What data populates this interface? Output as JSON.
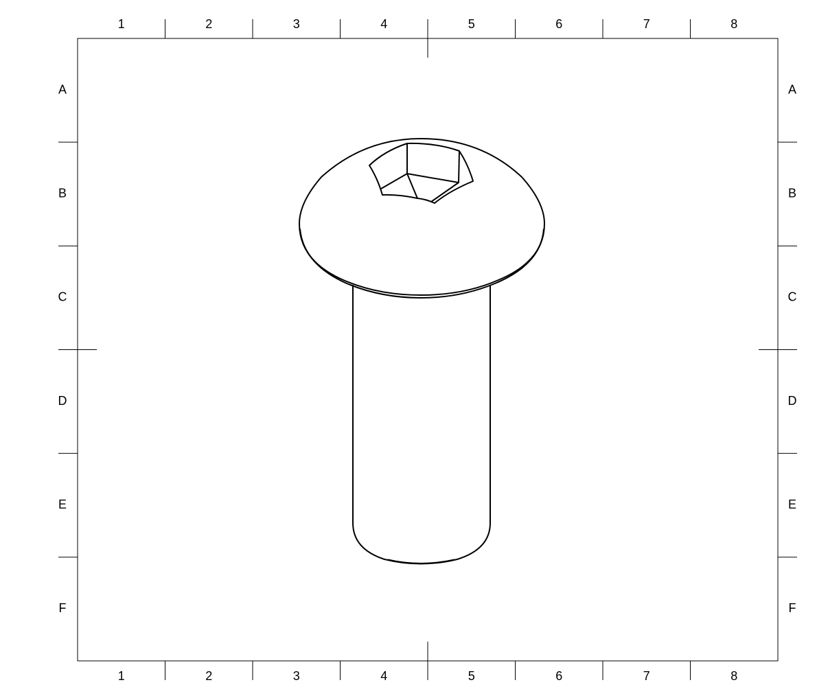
{
  "drawing": {
    "columns": [
      "1",
      "2",
      "3",
      "4",
      "5",
      "6",
      "7",
      "8"
    ],
    "rows": [
      "A",
      "B",
      "C",
      "D",
      "E",
      "F"
    ],
    "part": "button-head-hex-socket-screw",
    "line_color": "#000000",
    "background": "#ffffff"
  }
}
